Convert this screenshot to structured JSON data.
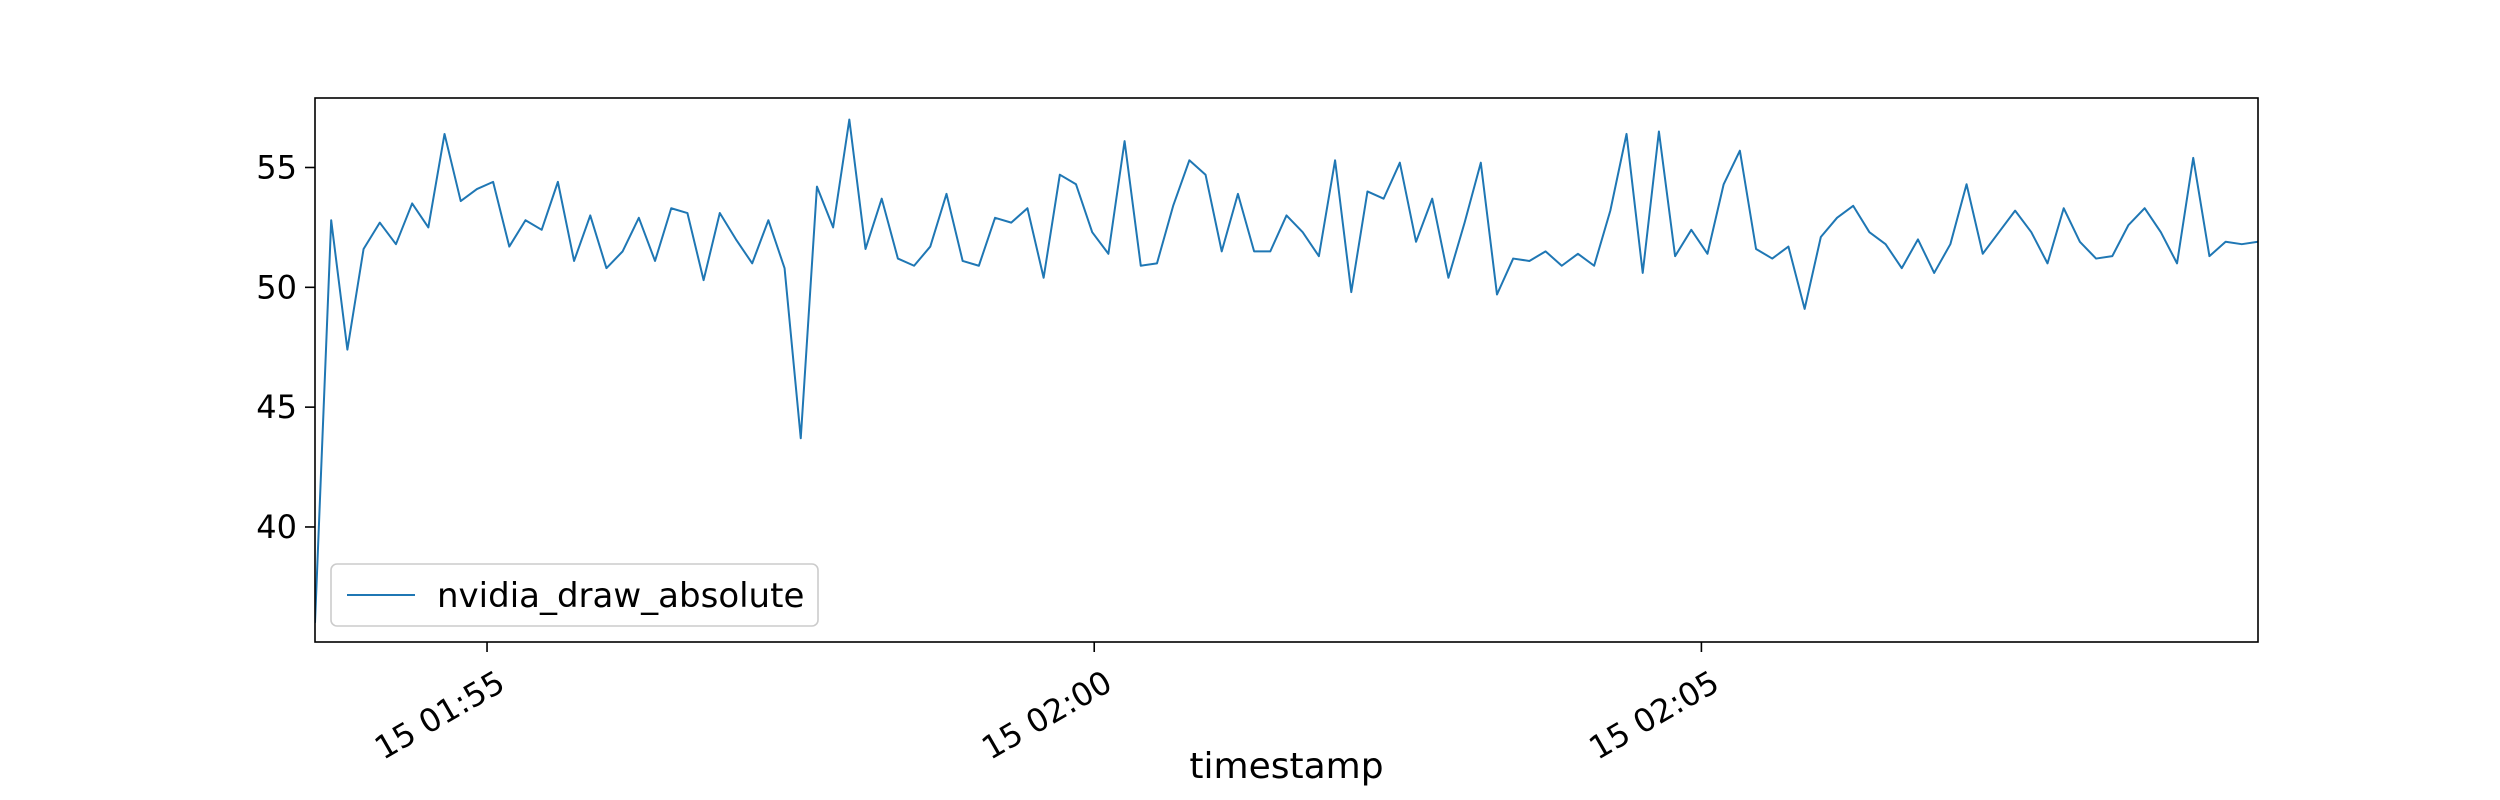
{
  "chart_data": {
    "type": "line",
    "title": "",
    "xlabel": "timestamp",
    "ylabel": "",
    "x_axis_type": "time",
    "x_range": [
      "15 01:53:35",
      "15 02:09:35"
    ],
    "ylim": [
      35.2,
      57.9
    ],
    "y_ticks": [
      40,
      45,
      50,
      55
    ],
    "x_ticks": [
      {
        "label": "15 01:55",
        "time": "15 01:55:00"
      },
      {
        "label": "15 02:00",
        "time": "15 02:00:00"
      },
      {
        "label": "15 02:05",
        "time": "15 02:05:00"
      }
    ],
    "grid": false,
    "legend": {
      "placement": "lower-left",
      "entries": [
        "nvidia_draw_absolute"
      ]
    },
    "series": [
      {
        "name": "nvidia_draw_absolute",
        "color": "#1f77b4",
        "x": [
          "15 01:53:35",
          "15 01:53:43",
          "15 01:53:51",
          "15 01:53:59",
          "15 01:54:07",
          "15 01:54:15",
          "15 01:54:23",
          "15 01:54:31",
          "15 01:54:39",
          "15 01:54:47",
          "15 01:54:55",
          "15 01:55:03",
          "15 01:55:11",
          "15 01:55:19",
          "15 01:55:27",
          "15 01:55:35",
          "15 01:55:43",
          "15 01:55:51",
          "15 01:55:59",
          "15 01:56:07",
          "15 01:56:15",
          "15 01:56:23",
          "15 01:56:31",
          "15 01:56:39",
          "15 01:56:47",
          "15 01:56:55",
          "15 01:57:03",
          "15 01:57:11",
          "15 01:57:19",
          "15 01:57:27",
          "15 01:57:35",
          "15 01:57:43",
          "15 01:57:51",
          "15 01:57:59",
          "15 01:58:07",
          "15 01:58:15",
          "15 01:58:23",
          "15 01:58:31",
          "15 01:58:39",
          "15 01:58:47",
          "15 01:58:55",
          "15 01:59:03",
          "15 01:59:11",
          "15 01:59:19",
          "15 01:59:27",
          "15 01:59:35",
          "15 01:59:43",
          "15 01:59:51",
          "15 01:59:59",
          "15 02:00:07",
          "15 02:00:15",
          "15 02:00:23",
          "15 02:00:31",
          "15 02:00:39",
          "15 02:00:47",
          "15 02:00:55",
          "15 02:01:03",
          "15 02:01:11",
          "15 02:01:19",
          "15 02:01:27",
          "15 02:01:35",
          "15 02:01:43",
          "15 02:01:51",
          "15 02:01:59",
          "15 02:02:07",
          "15 02:02:15",
          "15 02:02:23",
          "15 02:02:31",
          "15 02:02:39",
          "15 02:02:47",
          "15 02:02:55",
          "15 02:03:03",
          "15 02:03:11",
          "15 02:03:19",
          "15 02:03:27",
          "15 02:03:35",
          "15 02:03:43",
          "15 02:03:51",
          "15 02:03:59",
          "15 02:04:07",
          "15 02:04:15",
          "15 02:04:23",
          "15 02:04:31",
          "15 02:04:39",
          "15 02:04:47",
          "15 02:04:55",
          "15 02:05:03",
          "15 02:05:11",
          "15 02:05:19",
          "15 02:05:27",
          "15 02:05:35",
          "15 02:05:43",
          "15 02:05:51",
          "15 02:05:59",
          "15 02:06:07",
          "15 02:06:15",
          "15 02:06:23",
          "15 02:06:31",
          "15 02:06:39",
          "15 02:06:47",
          "15 02:06:55",
          "15 02:07:03",
          "15 02:07:11",
          "15 02:07:19",
          "15 02:07:27",
          "15 02:07:35",
          "15 02:07:43",
          "15 02:07:51",
          "15 02:07:59",
          "15 02:08:07",
          "15 02:08:15",
          "15 02:08:23",
          "15 02:08:31",
          "15 02:08:39",
          "15 02:08:47",
          "15 02:08:55",
          "15 02:09:03",
          "15 02:09:11",
          "15 02:09:19",
          "15 02:09:27",
          "15 02:09:35"
        ],
        "y": [
          36.0,
          52.8,
          47.4,
          51.6,
          52.7,
          51.8,
          53.5,
          52.5,
          56.4,
          53.6,
          54.1,
          54.4,
          51.7,
          52.8,
          52.4,
          54.4,
          51.1,
          53.0,
          50.8,
          51.5,
          52.9,
          51.1,
          53.3,
          53.1,
          50.3,
          53.1,
          52.0,
          51.0,
          52.8,
          50.8,
          43.7,
          54.2,
          52.5,
          57.0,
          51.6,
          53.7,
          51.2,
          50.9,
          51.7,
          53.9,
          51.1,
          50.9,
          52.9,
          52.7,
          53.3,
          50.4,
          54.7,
          54.3,
          52.3,
          51.4,
          56.1,
          50.9,
          51.0,
          53.4,
          55.3,
          54.7,
          51.5,
          53.9,
          51.5,
          51.5,
          53.0,
          52.3,
          51.3,
          55.3,
          49.8,
          54.0,
          53.7,
          55.2,
          51.9,
          53.7,
          50.4,
          52.7,
          55.2,
          49.7,
          51.2,
          51.1,
          51.5,
          50.9,
          51.4,
          50.9,
          53.2,
          56.4,
          50.6,
          56.5,
          51.3,
          52.4,
          51.4,
          54.3,
          55.7,
          51.6,
          51.2,
          51.7,
          49.1,
          52.1,
          52.9,
          53.4,
          52.3,
          51.8,
          50.8,
          52.0,
          50.6,
          51.8,
          54.3,
          51.4,
          52.3,
          53.2,
          52.3,
          51.0,
          53.3,
          51.9,
          51.2,
          51.3,
          52.6,
          53.3,
          52.3,
          51.0,
          55.4,
          51.3,
          51.9,
          51.8,
          51.9
        ]
      }
    ]
  }
}
